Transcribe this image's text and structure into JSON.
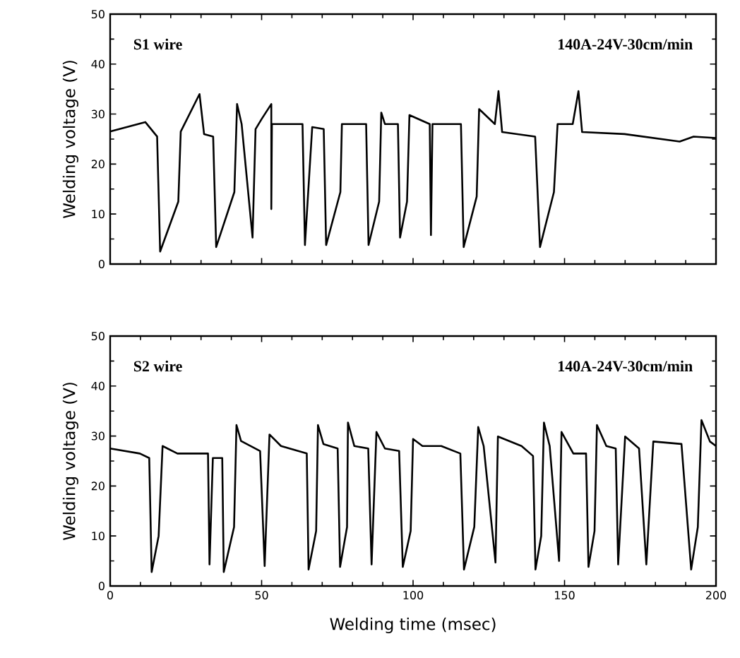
{
  "chart_data": [
    {
      "type": "line",
      "ylabel": "Welding voltage (V)",
      "annotations": [
        "S1 wire",
        "140A-24V-30cm/min"
      ],
      "xlim": [
        0,
        200
      ],
      "ylim": [
        0,
        50
      ],
      "xticks": [
        0,
        50,
        100,
        150,
        200
      ],
      "yticks": [
        0,
        10,
        20,
        30,
        40,
        50
      ],
      "tick_labels": "y",
      "series": [
        {
          "color": "#000000",
          "x": [
            0,
            11.6,
            15.5,
            16.5,
            22.5,
            23.3,
            29.5,
            31,
            34,
            35,
            41,
            41.9,
            43.4,
            47,
            48,
            50,
            53.2,
            53.2,
            53.4,
            63.5,
            64.3,
            66.7,
            70.5,
            71.3,
            76,
            76.5,
            84.5,
            85.3,
            88.8,
            89.5,
            90.7,
            95,
            95.7,
            98,
            98.8,
            105.5,
            105.9,
            106.4,
            115.8,
            116.7,
            121,
            121.8,
            127,
            128.2,
            129.4,
            140.3,
            141.9,
            146.5,
            147.7,
            152.7,
            154.6,
            155.8,
            169.8,
            188,
            192.6,
            200
          ],
          "values": [
            26.5,
            28.4,
            25.5,
            2.5,
            12.5,
            26.5,
            34,
            26,
            25.5,
            3.4,
            14.4,
            32,
            28,
            5.3,
            27,
            29,
            32,
            11,
            28,
            28,
            3.8,
            27.4,
            27,
            3.8,
            14.4,
            28,
            28,
            3.8,
            12.5,
            30.3,
            28,
            28,
            5.3,
            12.5,
            29.8,
            28,
            5.8,
            28,
            28,
            3.4,
            13.5,
            31,
            28,
            34.6,
            26.4,
            25.5,
            3.4,
            14.4,
            28,
            28,
            34.6,
            26.4,
            26,
            24.5,
            25.5,
            25.2
          ]
        }
      ]
    },
    {
      "type": "line",
      "xlabel": "Welding time (msec)",
      "ylabel": "Welding voltage (V)",
      "annotations": [
        "S2 wire",
        "140A-24V-30cm/min"
      ],
      "xlim": [
        0,
        200
      ],
      "ylim": [
        0,
        50
      ],
      "xticks": [
        0,
        50,
        100,
        150,
        200
      ],
      "yticks": [
        0,
        10,
        20,
        30,
        40,
        50
      ],
      "series": [
        {
          "color": "#000000",
          "x": [
            0,
            9.8,
            12.9,
            13.7,
            16,
            17.3,
            22.2,
            32.3,
            32.8,
            33.9,
            37,
            37.5,
            40.9,
            41.7,
            43.2,
            49.5,
            51,
            52.6,
            56.4,
            64.9,
            65.5,
            68,
            68.6,
            70.4,
            75.1,
            75.9,
            78.2,
            78.5,
            80.6,
            85.2,
            86.3,
            87.9,
            90.7,
            95.4,
            96.6,
            99.2,
            100,
            103.1,
            109.3,
            115.6,
            116.8,
            120.2,
            121.5,
            123.3,
            127.2,
            128,
            135.8,
            139.6,
            140.4,
            142.3,
            143.2,
            145.1,
            148.2,
            149,
            152.9,
            157.1,
            157.9,
            159.9,
            160.7,
            163.8,
            166.9,
            167.7,
            170,
            174.6,
            177,
            179.3,
            188.6,
            191.8,
            194,
            195.2,
            198,
            200
          ],
          "values": [
            27.5,
            26.5,
            25.6,
            2.8,
            10,
            28,
            26.5,
            26.5,
            4.3,
            25.6,
            25.6,
            2.8,
            11.8,
            32.2,
            29,
            27,
            4,
            30.3,
            28,
            26.5,
            3.3,
            11,
            32.2,
            28.4,
            27.5,
            3.8,
            11.8,
            32.7,
            28,
            27.5,
            4.3,
            30.8,
            27.5,
            27,
            3.8,
            11,
            29.4,
            28,
            28,
            26.5,
            3.3,
            11.8,
            31.8,
            28,
            4.7,
            29.9,
            28,
            26,
            3.3,
            10,
            32.7,
            28,
            5,
            30.8,
            26.5,
            26.5,
            3.8,
            11,
            32.2,
            28,
            27.5,
            4.3,
            29.9,
            27.5,
            4.3,
            28.9,
            28.4,
            3.3,
            11.8,
            33.2,
            28.9,
            28
          ]
        }
      ]
    }
  ]
}
